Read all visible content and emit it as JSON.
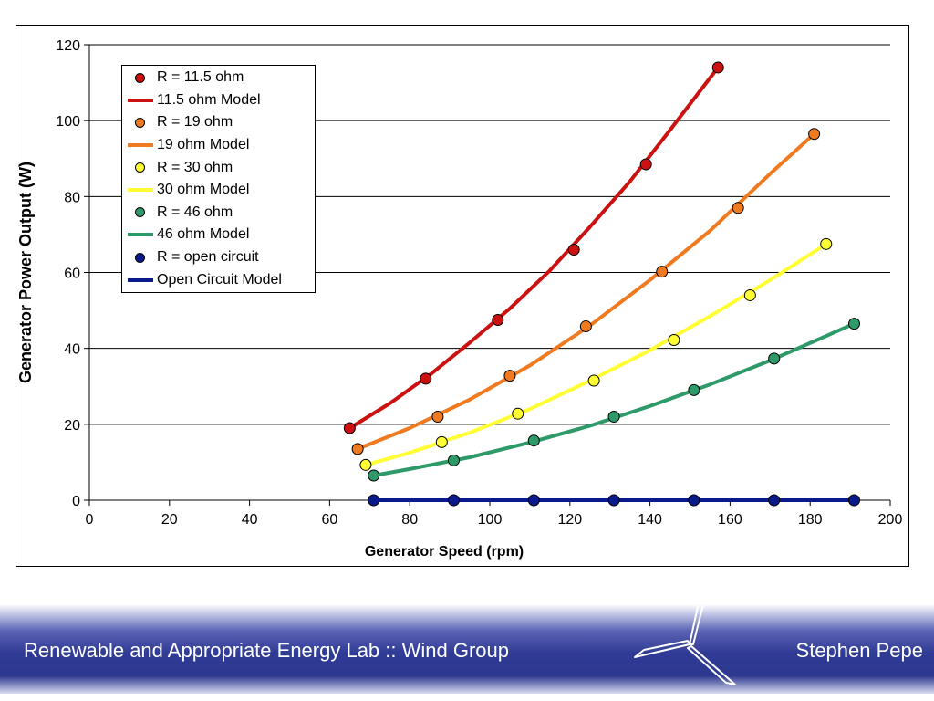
{
  "chart_data": {
    "type": "line",
    "xlabel": "Generator Speed (rpm)",
    "ylabel": "Generator Power Output (W)",
    "xlim": [
      0,
      200
    ],
    "ylim": [
      0,
      120
    ],
    "xticks": [
      "0",
      "20",
      "40",
      "60",
      "80",
      "100",
      "120",
      "140",
      "160",
      "180",
      "200"
    ],
    "yticks": [
      "0",
      "20",
      "40",
      "60",
      "80",
      "100",
      "120"
    ],
    "grid": "horizontal",
    "legend_position": "top-left",
    "series": [
      {
        "name": "R = 11.5 ohm",
        "kind": "markers",
        "color": "#cc1111",
        "x": [
          65,
          84,
          102,
          121,
          139,
          157
        ],
        "y": [
          19,
          32,
          47.5,
          66,
          88.5,
          114
        ]
      },
      {
        "name": "11.5 ohm Model",
        "kind": "line",
        "color": "#cc1111",
        "x": [
          65,
          75,
          85,
          95,
          105,
          115,
          125,
          135,
          145,
          157
        ],
        "y": [
          19,
          25.5,
          33,
          41.5,
          50.5,
          60.5,
          72,
          84,
          97.5,
          114
        ]
      },
      {
        "name": "R = 19 ohm",
        "kind": "markers",
        "color": "#f07a20",
        "x": [
          67,
          87,
          105,
          124,
          143,
          162,
          181
        ],
        "y": [
          13.5,
          22,
          32.8,
          45.8,
          60.2,
          77,
          96.5
        ]
      },
      {
        "name": "19 ohm Model",
        "kind": "line",
        "color": "#f07a20",
        "x": [
          67,
          80,
          95,
          110,
          125,
          140,
          155,
          170,
          181
        ],
        "y": [
          13.5,
          19,
          26.5,
          35.5,
          46,
          58,
          71,
          86,
          96.5
        ]
      },
      {
        "name": "R = 30 ohm",
        "kind": "markers",
        "color": "#ffff33",
        "x": [
          69,
          88,
          107,
          126,
          146,
          165,
          184
        ],
        "y": [
          9.3,
          15.3,
          22.8,
          31.5,
          42.2,
          54,
          67.5
        ]
      },
      {
        "name": "30 ohm Model",
        "kind": "line",
        "color": "#ffff33",
        "x": [
          69,
          80,
          95,
          110,
          125,
          140,
          155,
          170,
          184
        ],
        "y": [
          9.3,
          12.5,
          17.8,
          24,
          31.5,
          39.5,
          48.5,
          58,
          67.5
        ]
      },
      {
        "name": "R = 46 ohm",
        "kind": "markers",
        "color": "#2e9a6a",
        "x": [
          71,
          91,
          111,
          131,
          151,
          171,
          191
        ],
        "y": [
          6.5,
          10.5,
          15.7,
          22,
          29,
          37.3,
          46.5
        ]
      },
      {
        "name": "46 ohm Model",
        "kind": "line",
        "color": "#2e9a6a",
        "x": [
          71,
          80,
          95,
          110,
          125,
          140,
          155,
          170,
          191
        ],
        "y": [
          6.5,
          8.2,
          11.3,
          15.2,
          19.6,
          24.8,
          30.5,
          36.8,
          46.5
        ]
      },
      {
        "name": "R = open circuit",
        "kind": "markers",
        "color": "#0a1a8c",
        "x": [
          71,
          91,
          111,
          131,
          151,
          171,
          191
        ],
        "y": [
          0,
          0,
          0,
          0,
          0,
          0,
          0
        ]
      },
      {
        "name": "Open Circuit Model",
        "kind": "line",
        "color": "#0a1a8c",
        "x": [
          71,
          191
        ],
        "y": [
          0,
          0
        ]
      }
    ]
  },
  "footer": {
    "lab": "Renewable and Appropriate Energy Lab :: Wind Group",
    "author": "Stephen Pepe",
    "logo_icon": "wind-turbine-icon"
  }
}
